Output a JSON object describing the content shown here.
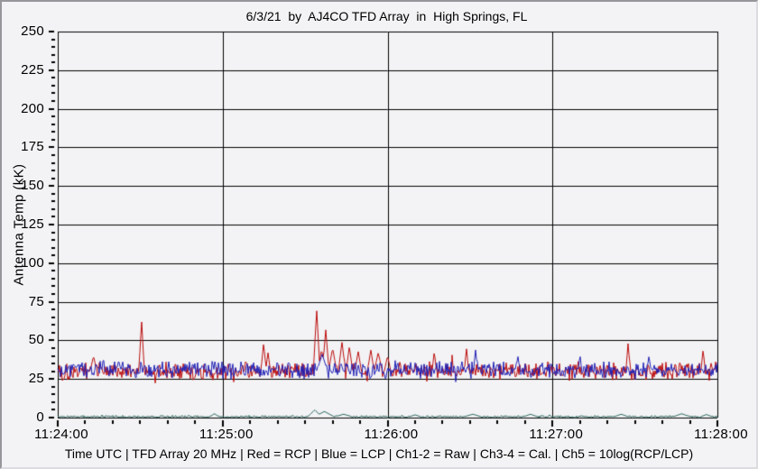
{
  "window": {
    "background": "#f3f3f5",
    "border_color": "#97979b"
  },
  "status_bar": {
    "text": "Time UTC | TFD Array 20 MHz | Red = RCP | Blue = LCP | Ch1-2 = Raw | Ch3-4 = Cal. | Ch5 = 10log(RCP/LCP)"
  },
  "chart_data": {
    "type": "line",
    "title": "6/3/21  by  AJ4CO TFD Array  in  High Springs, FL",
    "ylabel": "Antenna Temp (kK)",
    "xlabel": "Time UTC",
    "ylim": [
      0,
      250
    ],
    "y_major_step_kK": 25,
    "y_minor_step_kK": 5,
    "y_tick_labels": [
      "0",
      "25",
      "50",
      "75",
      "100",
      "125",
      "150",
      "175",
      "200",
      "225",
      "250"
    ],
    "x_range_seconds": [
      0,
      240
    ],
    "x_major_step_seconds": 60,
    "x_minor_step_seconds": 10,
    "x_tick_labels": [
      "11:24:00",
      "11:25:00",
      "11:26:00",
      "11:27:00",
      "11:28:00"
    ],
    "grid": true,
    "legend_position": "none",
    "gridline_color": "#000000",
    "series": [
      {
        "name": "RCP (Red, Raw Ch1-2)",
        "color": "#bb0b0b",
        "baseline_kK": 30,
        "noise_kK": 4.2,
        "seed": 101,
        "spikes": [
          {
            "t": 13.0,
            "peak": 40,
            "w": 1.2
          },
          {
            "t": 30.5,
            "peak": 63,
            "w": 1.0
          },
          {
            "t": 74.9,
            "peak": 48,
            "w": 1.0
          },
          {
            "t": 76.5,
            "peak": 42,
            "w": 0.9
          },
          {
            "t": 94.2,
            "peak": 70,
            "w": 1.2
          },
          {
            "t": 96.0,
            "peak": 44,
            "w": 1.5
          },
          {
            "t": 97.5,
            "peak": 57,
            "w": 1.2
          },
          {
            "t": 100.0,
            "peak": 45,
            "w": 1.5
          },
          {
            "t": 103.4,
            "peak": 49,
            "w": 1.3
          },
          {
            "t": 106.1,
            "peak": 46,
            "w": 1.2
          },
          {
            "t": 109.3,
            "peak": 43,
            "w": 1.2
          },
          {
            "t": 113.9,
            "peak": 44,
            "w": 1.2
          },
          {
            "t": 116.6,
            "peak": 42,
            "w": 1.5
          },
          {
            "t": 120.0,
            "peak": 40,
            "w": 1.2
          },
          {
            "t": 137.0,
            "peak": 43,
            "w": 0.8
          },
          {
            "t": 148.7,
            "peak": 45,
            "w": 0.8
          },
          {
            "t": 207.5,
            "peak": 48,
            "w": 0.8
          },
          {
            "t": 234.8,
            "peak": 44,
            "w": 0.8
          }
        ]
      },
      {
        "name": "LCP (Blue, Raw Ch1-2)",
        "color": "#1f1fb4",
        "baseline_kK": 31,
        "noise_kK": 3.8,
        "seed": 202,
        "spikes": [
          {
            "t": 96.2,
            "peak": 41,
            "w": 1.8
          },
          {
            "t": 152.0,
            "peak": 44,
            "w": 0.7
          },
          {
            "t": 167.4,
            "peak": 40,
            "w": 0.7
          },
          {
            "t": 190.0,
            "peak": 41,
            "w": 0.6
          },
          {
            "t": 215.1,
            "peak": 40,
            "w": 0.7
          }
        ]
      },
      {
        "name": "Ch5 = 10log(RCP/LCP)",
        "color": "#2e6a60",
        "baseline_kK": 0.6,
        "noise_kK": 0.55,
        "seed": 303,
        "spikes": [
          {
            "t": 57.0,
            "peak": 2.6,
            "w": 1.5
          },
          {
            "t": 93.5,
            "peak": 5.0,
            "w": 2.5
          },
          {
            "t": 97.0,
            "peak": 4.0,
            "w": 3.5
          },
          {
            "t": 104.0,
            "peak": 2.2,
            "w": 3.0
          },
          {
            "t": 130.0,
            "peak": 1.8,
            "w": 2.0
          },
          {
            "t": 151.0,
            "peak": 2.2,
            "w": 3.0
          },
          {
            "t": 172.0,
            "peak": 2.2,
            "w": 2.5
          },
          {
            "t": 205.0,
            "peak": 2.2,
            "w": 2.5
          },
          {
            "t": 227.0,
            "peak": 2.5,
            "w": 3.0
          },
          {
            "t": 236.0,
            "peak": 2.0,
            "w": 2.0
          }
        ]
      }
    ]
  }
}
